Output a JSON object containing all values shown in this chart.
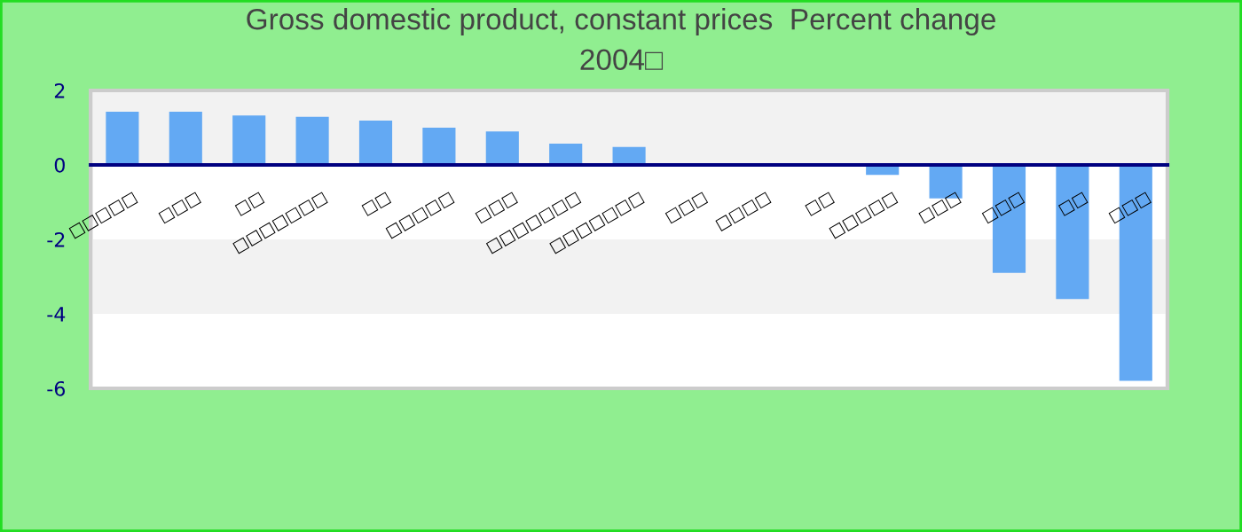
{
  "chart_data": {
    "type": "bar",
    "title": "Gross domestic product, constant prices  Percent change\n2004□",
    "categories": [
      "□□□□□",
      "□□□",
      "□□",
      "□□□□□□□",
      "□□",
      "□□□□□",
      "□□□",
      "□□□□□□□",
      "□□□□□□□",
      "□□□",
      "□□□□",
      "□□",
      "□□□□□",
      "□□□",
      "□□□",
      "□□",
      "□□□"
    ],
    "values": [
      1.43,
      1.43,
      1.33,
      1.29,
      1.19,
      1.0,
      0.9,
      0.57,
      0.48,
      0,
      0,
      0,
      -0.27,
      -0.9,
      -2.9,
      -3.6,
      -5.8
    ],
    "color": "#63a9f3",
    "ylim": [
      -6,
      2
    ],
    "yticks": [
      -6,
      -4,
      -2,
      0,
      2
    ],
    "bands": [
      {
        "axis": "y",
        "from": 0,
        "to": 2,
        "color": "#f2f2f2"
      },
      {
        "axis": "y",
        "from": -4,
        "to": -2,
        "color": "#f2f2f2"
      }
    ],
    "grid": false
  }
}
